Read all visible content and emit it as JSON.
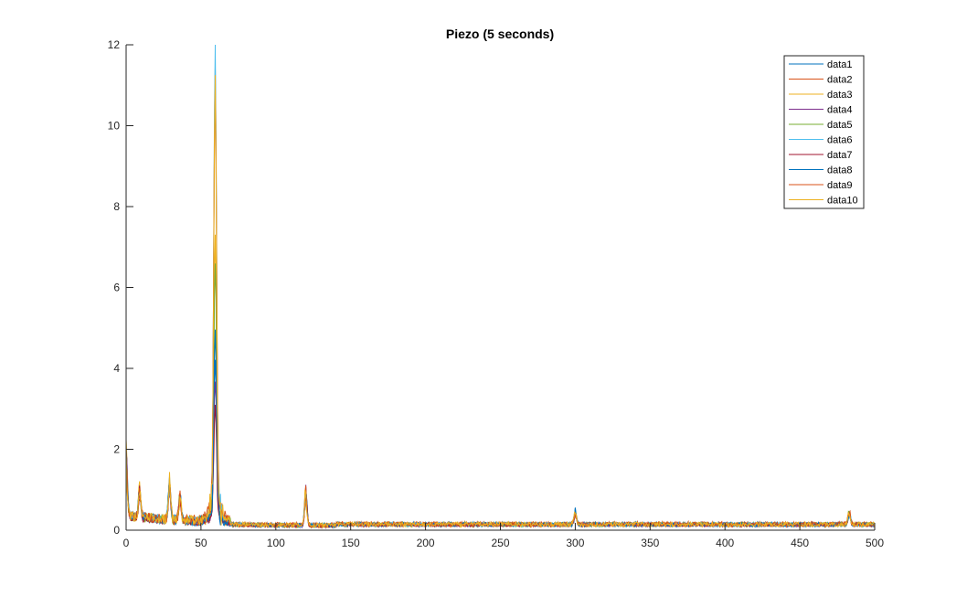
{
  "chart_data": {
    "type": "line",
    "title": "Piezo (5 seconds)",
    "xlabel": "",
    "ylabel": "",
    "xlim": [
      0,
      500
    ],
    "ylim": [
      0,
      12
    ],
    "xticks": [
      0,
      50,
      100,
      150,
      200,
      250,
      300,
      350,
      400,
      450,
      500
    ],
    "yticks": [
      0,
      2,
      4,
      6,
      8,
      10,
      12
    ],
    "grid": false,
    "legend_position": "top-right",
    "colors": [
      "#0072BD",
      "#D95319",
      "#EDB120",
      "#7E2F8E",
      "#77AC30",
      "#4DBEEE",
      "#A2142F",
      "#0072BD",
      "#D95319",
      "#EDB120"
    ],
    "peaks": [
      {
        "x": 0,
        "y": 1.9
      },
      {
        "x": 9,
        "y": 0.85
      },
      {
        "x": 29,
        "y": 1.15
      },
      {
        "x": 36,
        "y": 0.75
      },
      {
        "x": 59.5,
        "y": 11.2
      },
      {
        "x": 120,
        "y": 1.0
      },
      {
        "x": 300,
        "y": 0.38
      },
      {
        "x": 483,
        "y": 0.35
      }
    ],
    "series": [
      {
        "name": "data1",
        "peak_scale": 0.35,
        "noise": 0.11
      },
      {
        "name": "data2",
        "peak_scale": 0.95,
        "noise": 0.12
      },
      {
        "name": "data3",
        "peak_scale": 0.6,
        "noise": 0.1
      },
      {
        "name": "data4",
        "peak_scale": 0.3,
        "noise": 0.09
      },
      {
        "name": "data5",
        "peak_scale": 0.55,
        "noise": 0.1
      },
      {
        "name": "data6",
        "peak_scale": 1.0,
        "noise": 0.1
      },
      {
        "name": "data7",
        "peak_scale": 0.25,
        "noise": 0.08
      },
      {
        "name": "data8",
        "peak_scale": 0.4,
        "noise": 0.1
      },
      {
        "name": "data9",
        "peak_scale": 0.94,
        "noise": 0.11
      },
      {
        "name": "data10",
        "peak_scale": 0.92,
        "noise": 0.11
      }
    ]
  }
}
